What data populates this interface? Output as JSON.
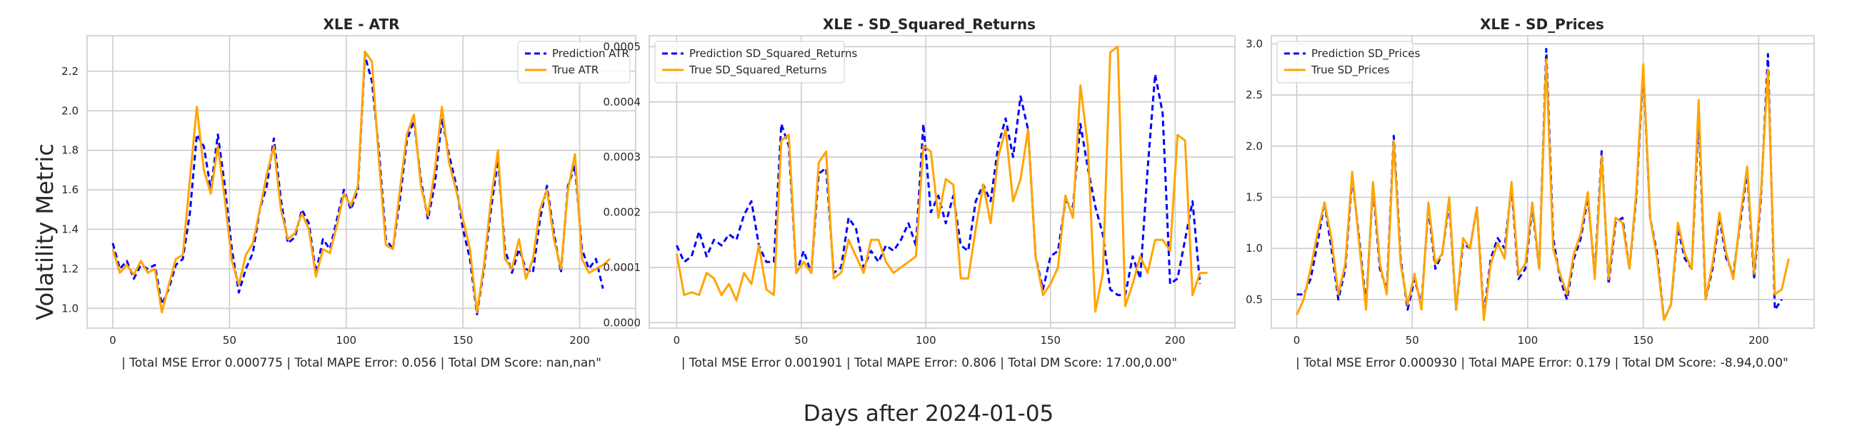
{
  "figure": {
    "ylabel": "Volatility Metric",
    "xlabel": "Days after 2024-01-05"
  },
  "chart_data": [
    {
      "type": "line",
      "title": "XLE - ATR",
      "xlabel": "| Total MSE Error 0.000775 | Total MAPE Error: 0.056 | Total DM Score: nan,nan\"",
      "xlim": [
        -11,
        224
      ],
      "ylim": [
        0.9,
        2.38
      ],
      "xticks": [
        0,
        50,
        100,
        150,
        200
      ],
      "yticks": [
        1.0,
        1.2,
        1.4,
        1.6,
        1.8,
        2.0,
        2.2
      ],
      "ytick_labels": [
        "1.0",
        "1.2",
        "1.4",
        "1.6",
        "1.8",
        "2.0",
        "2.2"
      ],
      "legend_position": "top-right",
      "series": [
        {
          "name": "Prediction ATR",
          "color": "#0000ff",
          "style": "dashed",
          "x": [
            0,
            3,
            6,
            9,
            12,
            15,
            18,
            21,
            24,
            27,
            30,
            33,
            36,
            39,
            42,
            45,
            48,
            51,
            54,
            57,
            60,
            63,
            66,
            69,
            72,
            75,
            78,
            81,
            84,
            87,
            90,
            93,
            96,
            99,
            102,
            105,
            108,
            111,
            114,
            117,
            120,
            123,
            126,
            129,
            132,
            135,
            138,
            141,
            144,
            147,
            150,
            153,
            156,
            159,
            162,
            165,
            168,
            171,
            174,
            177,
            180,
            183,
            186,
            189,
            192,
            195,
            198,
            201,
            204,
            207,
            210
          ],
          "y": [
            1.33,
            1.2,
            1.24,
            1.15,
            1.22,
            1.2,
            1.22,
            1.02,
            1.1,
            1.22,
            1.25,
            1.48,
            1.88,
            1.82,
            1.6,
            1.88,
            1.62,
            1.3,
            1.08,
            1.2,
            1.28,
            1.5,
            1.62,
            1.86,
            1.55,
            1.33,
            1.36,
            1.5,
            1.43,
            1.18,
            1.35,
            1.3,
            1.45,
            1.6,
            1.5,
            1.6,
            2.28,
            2.15,
            1.8,
            1.35,
            1.3,
            1.55,
            1.85,
            1.95,
            1.65,
            1.45,
            1.63,
            1.96,
            1.78,
            1.63,
            1.4,
            1.25,
            0.97,
            1.2,
            1.5,
            1.75,
            1.3,
            1.18,
            1.3,
            1.2,
            1.18,
            1.45,
            1.62,
            1.38,
            1.18,
            1.62,
            1.72,
            1.3,
            1.2,
            1.25,
            1.1
          ]
        },
        {
          "name": "True ATR",
          "color": "#ffa500",
          "style": "solid",
          "x": [
            0,
            3,
            6,
            9,
            12,
            15,
            18,
            21,
            24,
            27,
            30,
            33,
            36,
            39,
            42,
            45,
            48,
            51,
            54,
            57,
            60,
            63,
            66,
            69,
            72,
            75,
            78,
            81,
            84,
            87,
            90,
            93,
            96,
            99,
            102,
            105,
            108,
            111,
            114,
            117,
            120,
            123,
            126,
            129,
            132,
            135,
            138,
            141,
            144,
            147,
            150,
            153,
            156,
            159,
            162,
            165,
            168,
            171,
            174,
            177,
            180,
            183,
            186,
            189,
            192,
            195,
            198,
            201,
            204,
            207,
            210,
            213
          ],
          "y": [
            1.3,
            1.18,
            1.22,
            1.17,
            1.24,
            1.18,
            1.2,
            0.98,
            1.12,
            1.25,
            1.27,
            1.65,
            2.02,
            1.7,
            1.58,
            1.82,
            1.55,
            1.24,
            1.12,
            1.27,
            1.33,
            1.5,
            1.68,
            1.82,
            1.5,
            1.35,
            1.38,
            1.48,
            1.4,
            1.16,
            1.3,
            1.28,
            1.42,
            1.58,
            1.52,
            1.62,
            2.3,
            2.25,
            1.75,
            1.32,
            1.3,
            1.6,
            1.88,
            1.98,
            1.62,
            1.47,
            1.7,
            2.02,
            1.74,
            1.6,
            1.45,
            1.3,
            0.98,
            1.22,
            1.55,
            1.8,
            1.25,
            1.2,
            1.35,
            1.15,
            1.25,
            1.5,
            1.6,
            1.35,
            1.2,
            1.6,
            1.78,
            1.25,
            1.18,
            1.2,
            1.22,
            1.25
          ]
        }
      ]
    },
    {
      "type": "line",
      "title": "XLE - SD_Squared_Returns",
      "xlabel": "| Total MSE Error 0.001901 | Total MAPE Error: 0.806 | Total DM Score: 17.00,0.00\"",
      "xlim": [
        -11,
        224
      ],
      "ylim": [
        -1e-05,
        0.00052
      ],
      "xticks": [
        0,
        50,
        100,
        150,
        200
      ],
      "yticks": [
        0.0,
        0.0001,
        0.0002,
        0.0003,
        0.0004,
        0.0005
      ],
      "ytick_labels": [
        "0.0000",
        "0.0001",
        "0.0002",
        "0.0003",
        "0.0004",
        "0.0005"
      ],
      "legend_position": "top-left",
      "series": [
        {
          "name": "Prediction SD_Squared_Returns",
          "color": "#0000ff",
          "style": "dashed",
          "x": [
            0,
            3,
            6,
            9,
            12,
            15,
            18,
            21,
            24,
            27,
            30,
            33,
            36,
            39,
            42,
            45,
            48,
            51,
            54,
            57,
            60,
            63,
            66,
            69,
            72,
            75,
            78,
            81,
            84,
            87,
            90,
            93,
            96,
            99,
            102,
            105,
            108,
            111,
            114,
            117,
            120,
            123,
            126,
            129,
            132,
            135,
            138,
            141,
            144,
            147,
            150,
            153,
            156,
            159,
            162,
            165,
            168,
            171,
            174,
            177,
            180,
            183,
            186,
            189,
            192,
            195,
            198,
            201,
            204,
            207,
            210
          ],
          "y": [
            0.00014,
            0.00011,
            0.00012,
            0.000165,
            0.00012,
            0.00015,
            0.00014,
            0.00016,
            0.00015,
            0.000195,
            0.00022,
            0.00014,
            0.00011,
            0.00011,
            0.00036,
            0.00032,
            9e-05,
            0.00013,
            9e-05,
            0.00027,
            0.00028,
            9e-05,
            0.0001,
            0.00019,
            0.00017,
            0.0001,
            0.00013,
            0.00011,
            0.00014,
            0.00013,
            0.00015,
            0.00018,
            0.00014,
            0.00036,
            0.0002,
            0.00023,
            0.00018,
            0.00023,
            0.00014,
            0.00013,
            0.00022,
            0.00025,
            0.00022,
            0.00032,
            0.00037,
            0.0003,
            0.00041,
            0.00035,
            0.00012,
            6e-05,
            0.00012,
            0.00013,
            0.00022,
            0.00021,
            0.00036,
            0.00028,
            0.00021,
            0.00016,
            6e-05,
            5e-05,
            5e-05,
            0.00012,
            8e-05,
            0.00028,
            0.00045,
            0.00038,
            7e-05,
            8e-05,
            0.00015,
            0.00022,
            7e-05
          ]
        },
        {
          "name": "True SD_Squared_Returns",
          "color": "#ffa500",
          "style": "solid",
          "x": [
            0,
            3,
            6,
            9,
            12,
            15,
            18,
            21,
            24,
            27,
            30,
            33,
            36,
            39,
            42,
            45,
            48,
            51,
            54,
            57,
            60,
            63,
            66,
            69,
            72,
            75,
            78,
            81,
            84,
            87,
            90,
            93,
            96,
            99,
            102,
            105,
            108,
            111,
            114,
            117,
            120,
            123,
            126,
            129,
            132,
            135,
            138,
            141,
            144,
            147,
            150,
            153,
            156,
            159,
            162,
            165,
            168,
            171,
            174,
            177,
            180,
            183,
            186,
            189,
            192,
            195,
            198,
            201,
            204,
            207,
            210,
            213
          ],
          "y": [
            0.000125,
            5e-05,
            5.5e-05,
            5e-05,
            9e-05,
            8e-05,
            5e-05,
            7e-05,
            4e-05,
            9e-05,
            7e-05,
            0.00014,
            6e-05,
            5e-05,
            0.00033,
            0.00034,
            9e-05,
            0.00011,
            9e-05,
            0.00029,
            0.00031,
            8e-05,
            9e-05,
            0.00015,
            0.00012,
            9e-05,
            0.00015,
            0.00015,
            0.00011,
            9e-05,
            0.0001,
            0.00011,
            0.00012,
            0.00032,
            0.00031,
            0.00019,
            0.00026,
            0.00025,
            8e-05,
            8e-05,
            0.00017,
            0.00025,
            0.00018,
            0.0003,
            0.00035,
            0.00022,
            0.00026,
            0.00035,
            0.00012,
            5e-05,
            7e-05,
            0.0001,
            0.00023,
            0.00019,
            0.00043,
            0.00032,
            2e-05,
            9e-05,
            0.00049,
            0.0005,
            3e-05,
            7e-05,
            0.00012,
            9e-05,
            0.00015,
            0.00015,
            0.00013,
            0.00034,
            0.00033,
            5e-05,
            9e-05,
            9e-05
          ]
        }
      ]
    },
    {
      "type": "line",
      "title": "XLE - SD_Prices",
      "xlabel": "| Total MSE Error 0.000930 | Total MAPE Error: 0.179 | Total DM Score: -8.94,0.00\"",
      "xlim": [
        -11,
        224
      ],
      "ylim": [
        0.22,
        3.08
      ],
      "xticks": [
        0,
        50,
        100,
        150,
        200
      ],
      "yticks": [
        0.5,
        1.0,
        1.5,
        2.0,
        2.5,
        3.0
      ],
      "ytick_labels": [
        "0.5",
        "1.0",
        "1.5",
        "2.0",
        "2.5",
        "3.0"
      ],
      "legend_position": "top-left",
      "series": [
        {
          "name": "Prediction SD_Prices",
          "color": "#0000ff",
          "style": "dashed",
          "x": [
            0,
            3,
            6,
            9,
            12,
            15,
            18,
            21,
            24,
            27,
            30,
            33,
            36,
            39,
            42,
            45,
            48,
            51,
            54,
            57,
            60,
            63,
            66,
            69,
            72,
            75,
            78,
            81,
            84,
            87,
            90,
            93,
            96,
            99,
            102,
            105,
            108,
            111,
            114,
            117,
            120,
            123,
            126,
            129,
            132,
            135,
            138,
            141,
            144,
            147,
            150,
            153,
            156,
            159,
            162,
            165,
            168,
            171,
            174,
            177,
            180,
            183,
            186,
            189,
            192,
            195,
            198,
            201,
            204,
            207,
            210
          ],
          "y": [
            0.55,
            0.55,
            0.7,
            1.05,
            1.45,
            1.0,
            0.5,
            0.8,
            1.7,
            1.1,
            0.45,
            1.6,
            0.8,
            0.6,
            2.1,
            0.9,
            0.4,
            0.7,
            0.45,
            1.4,
            0.8,
            0.95,
            1.45,
            0.4,
            1.05,
            1.0,
            1.4,
            0.35,
            0.9,
            1.1,
            1.0,
            1.6,
            0.7,
            0.8,
            1.4,
            0.8,
            2.95,
            1.1,
            0.7,
            0.5,
            0.9,
            1.1,
            1.5,
            0.75,
            1.95,
            0.65,
            1.25,
            1.3,
            0.8,
            1.5,
            2.75,
            1.3,
            0.95,
            0.3,
            0.45,
            1.2,
            0.9,
            0.8,
            2.3,
            0.5,
            0.8,
            1.3,
            0.9,
            0.75,
            1.25,
            1.75,
            0.7,
            1.5,
            2.9,
            0.4,
            0.5
          ]
        },
        {
          "name": "True SD_Prices",
          "color": "#ffa500",
          "style": "solid",
          "x": [
            0,
            3,
            6,
            9,
            12,
            15,
            18,
            21,
            24,
            27,
            30,
            33,
            36,
            39,
            42,
            45,
            48,
            51,
            54,
            57,
            60,
            63,
            66,
            69,
            72,
            75,
            78,
            81,
            84,
            87,
            90,
            93,
            96,
            99,
            102,
            105,
            108,
            111,
            114,
            117,
            120,
            123,
            126,
            129,
            132,
            135,
            138,
            141,
            144,
            147,
            150,
            153,
            156,
            159,
            162,
            165,
            168,
            171,
            174,
            177,
            180,
            183,
            186,
            189,
            192,
            195,
            198,
            201,
            204,
            207,
            210,
            213
          ],
          "y": [
            0.35,
            0.5,
            0.8,
            1.15,
            1.45,
            1.1,
            0.55,
            0.85,
            1.75,
            1.05,
            0.4,
            1.65,
            0.85,
            0.55,
            2.05,
            0.85,
            0.45,
            0.75,
            0.4,
            1.45,
            0.85,
            0.95,
            1.5,
            0.4,
            1.1,
            1.0,
            1.4,
            0.3,
            0.85,
            1.05,
            0.9,
            1.65,
            0.75,
            0.85,
            1.45,
            0.8,
            2.85,
            1.0,
            0.75,
            0.55,
            0.95,
            1.15,
            1.55,
            0.7,
            1.9,
            0.7,
            1.3,
            1.25,
            0.8,
            1.55,
            2.8,
            1.3,
            0.9,
            0.3,
            0.45,
            1.25,
            0.95,
            0.8,
            2.45,
            0.5,
            0.85,
            1.35,
            0.95,
            0.7,
            1.3,
            1.8,
            0.75,
            1.55,
            2.75,
            0.55,
            0.6,
            0.9
          ]
        }
      ]
    }
  ]
}
